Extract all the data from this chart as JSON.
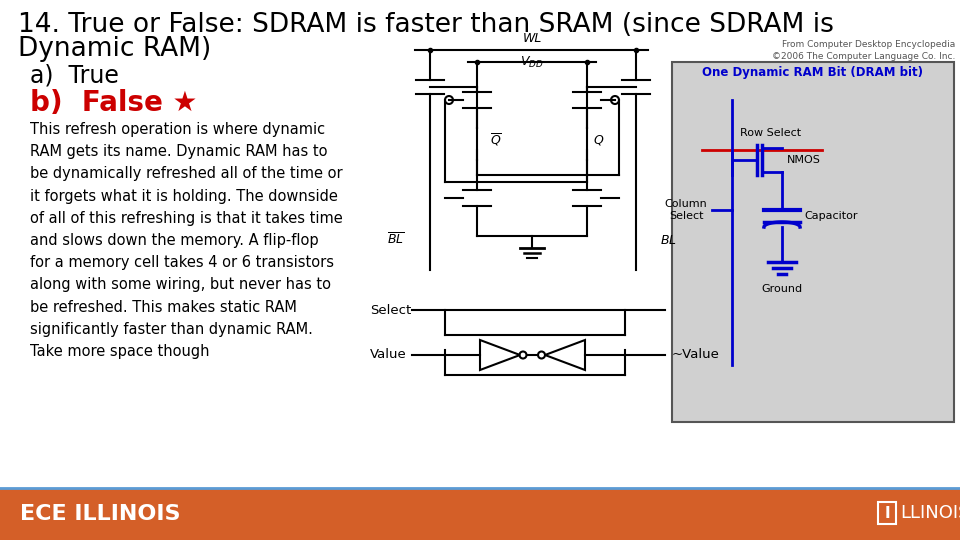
{
  "title_line1": "14. True or False: SDRAM is faster than SRAM (since SDRAM is",
  "title_line2": "Dynamic RAM)",
  "title_fontsize": 19,
  "title_color": "#000000",
  "option_a": "a)  True",
  "option_b_prefix": "b)  False ",
  "option_b_star": "★",
  "option_b_color": "#cc0000",
  "option_fontsize": 17,
  "body_text": "This refresh operation is where dynamic\nRAM gets its name. Dynamic RAM has to\nbe dynamically refreshed all of the time or\nit forgets what it is holding. The downside\nof all of this refreshing is that it takes time\nand slows down the memory. A flip-flop\nfor a memory cell takes 4 or 6 transistors\nalong with some wiring, but never has to\nbe refreshed. This makes static RAM\nsignificantly faster than dynamic RAM.\nTake more space though",
  "body_fontsize": 10.5,
  "footer_color": "#d45f28",
  "footer_text_left": "ECE ILLINOIS",
  "footer_text_right": "ILLINOIS",
  "bg_color": "#ffffff",
  "small_note": "From Computer Desktop Encyclopedia\n©2006 The Computer Language Co. Inc.",
  "small_note_fontsize": 6.5,
  "dram_box_color": "#d0d0d0",
  "dram_title_color": "#0000cc",
  "dram_line_color": "#0000cc",
  "dram_red_color": "#cc0000",
  "circuit_line_color": "#000000"
}
